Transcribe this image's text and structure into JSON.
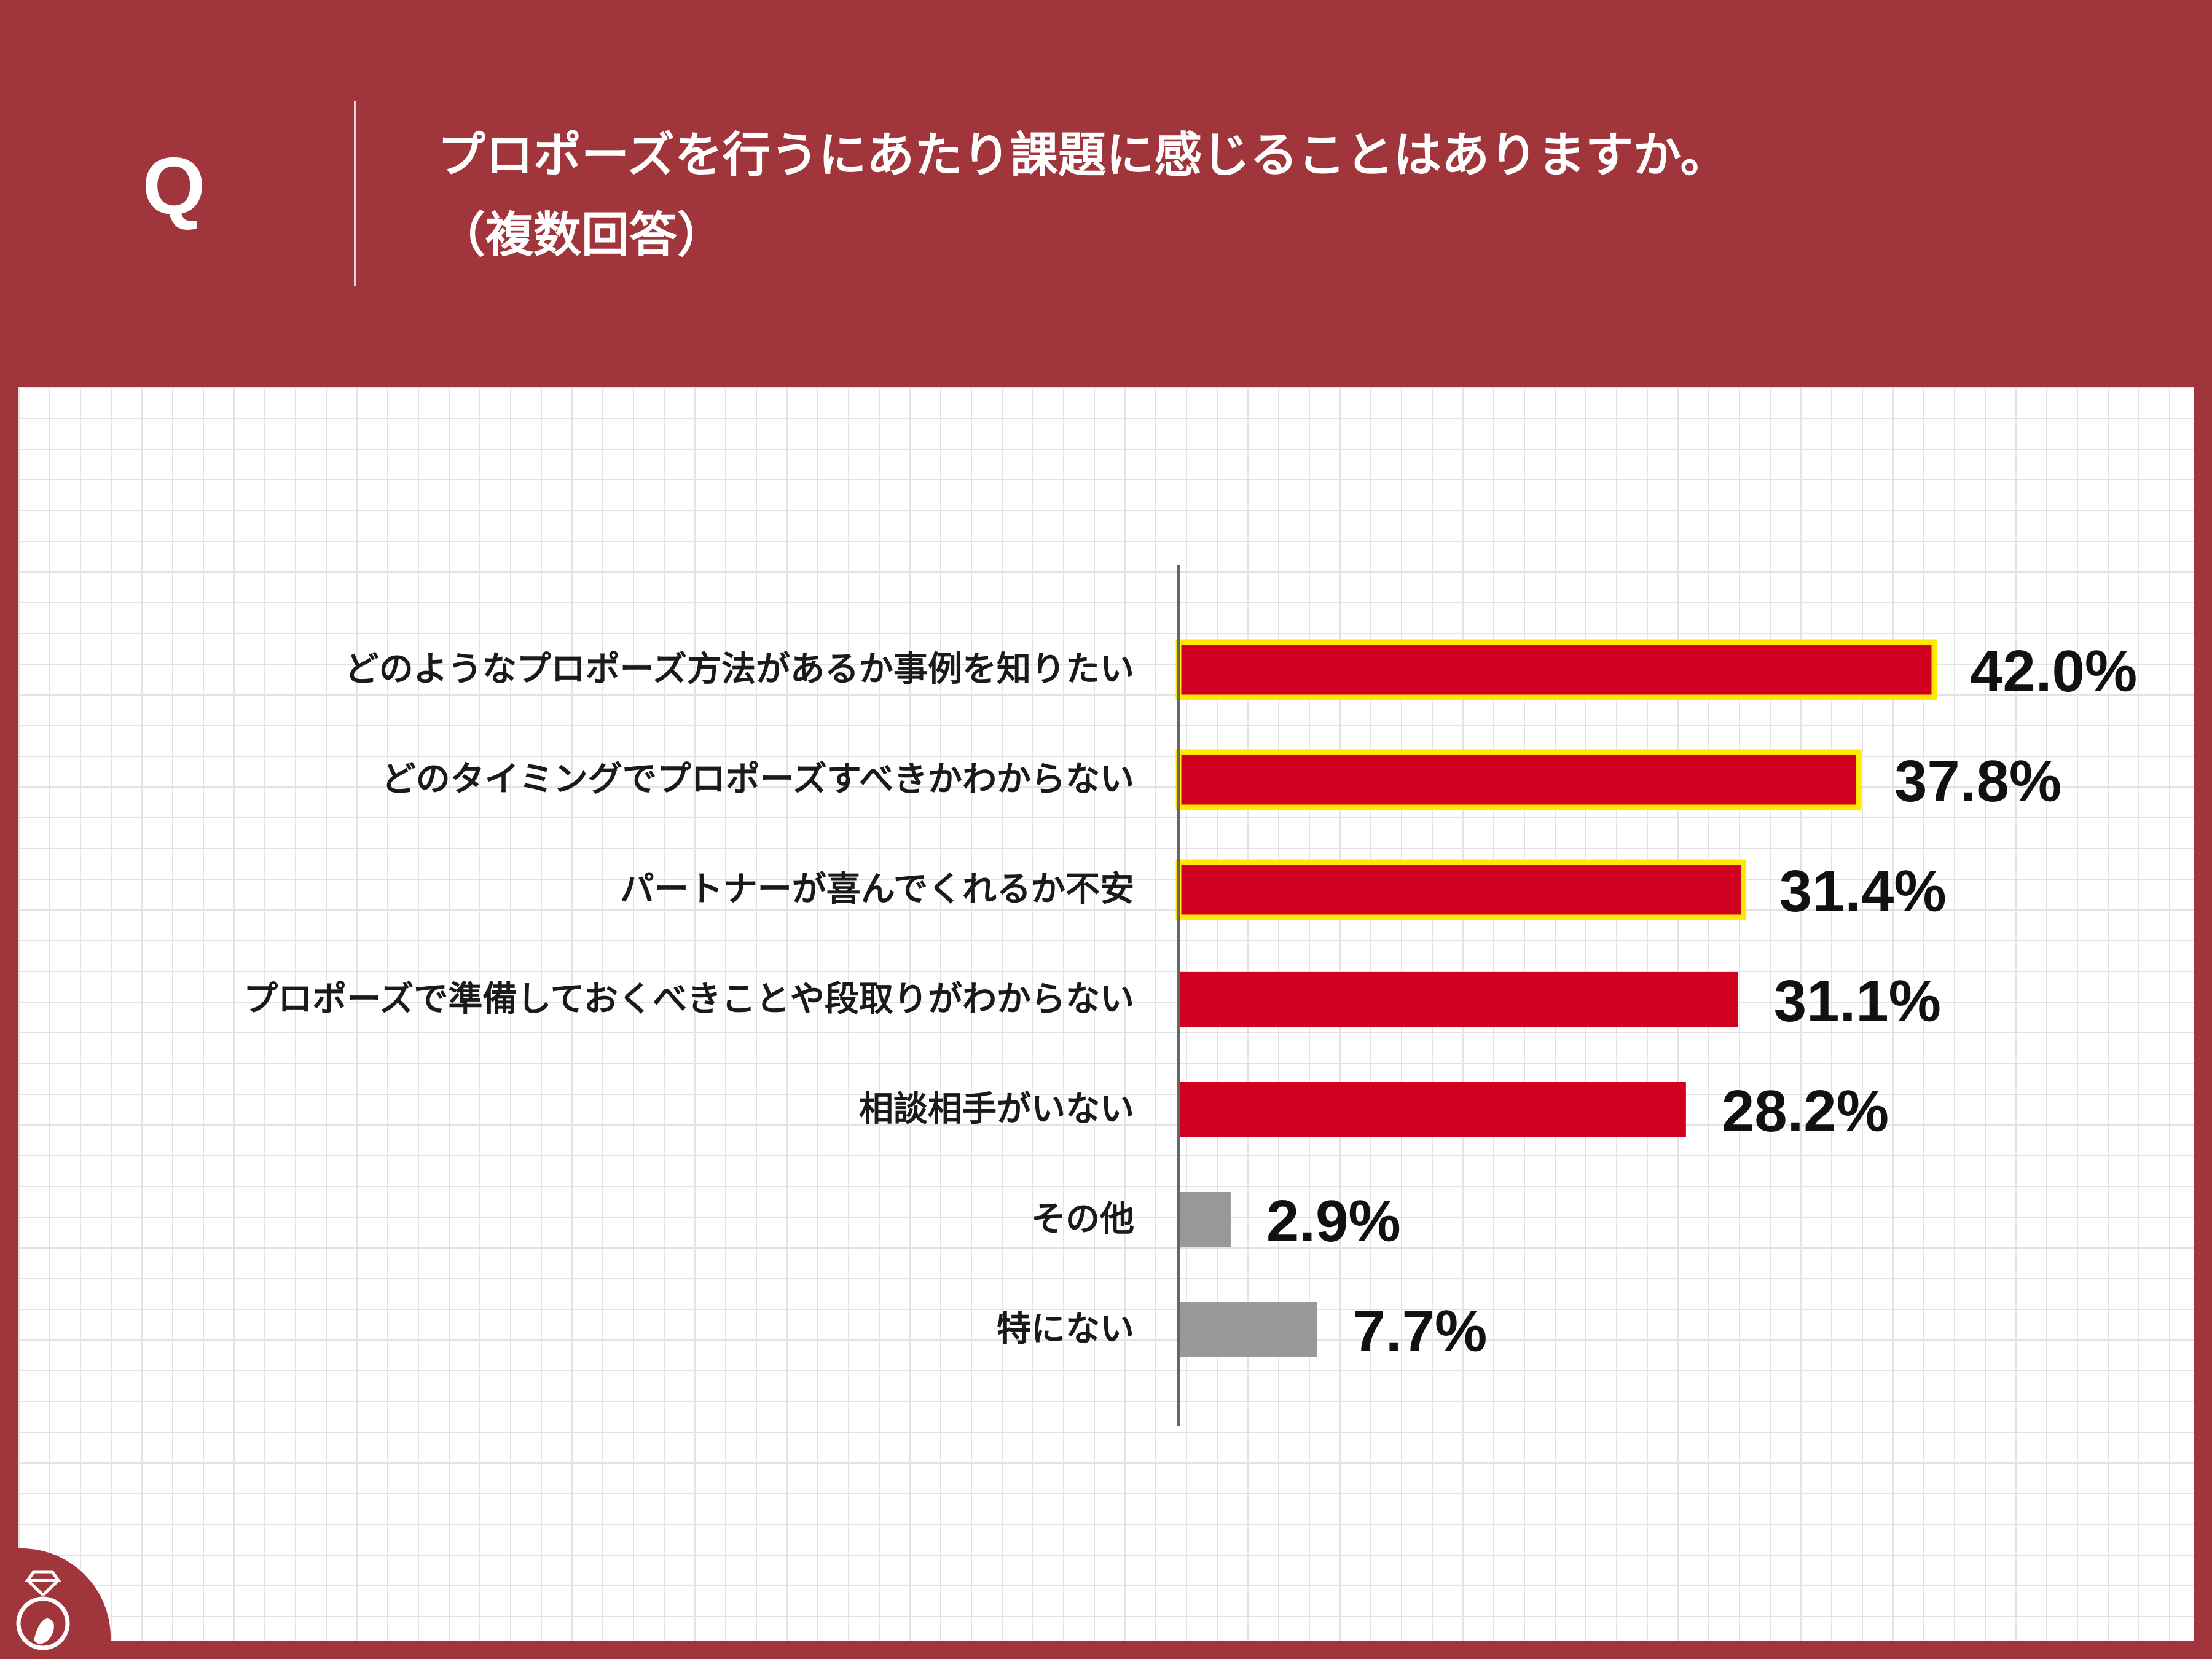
{
  "header": {
    "q_mark": "Q",
    "question_line1": "プロポーズを行うにあたり課題に感じることはありますか。",
    "question_line2": "（複数回答）"
  },
  "colors": {
    "background": "#a0363b",
    "bar_primary": "#d10020",
    "bar_highlight_border": "#ffe900",
    "bar_other": "#999999",
    "axis": "#666666"
  },
  "chart_data": {
    "type": "bar",
    "orientation": "horizontal",
    "title": "プロポーズを行うにあたり課題に感じることはありますか。（複数回答）",
    "categories": [
      "どのようなプロポーズ方法があるか事例を知りたい",
      "どのタイミングでプロポーズすべきかわからない",
      "パートナーが喜んでくれるか不安",
      "プロポーズで準備しておくべきことや段取りがわからない",
      "相談相手がいない",
      "その他",
      "特にない"
    ],
    "values": [
      42.0,
      37.8,
      31.4,
      31.1,
      28.2,
      2.9,
      7.7
    ],
    "value_labels": [
      "42.0%",
      "37.8%",
      "31.4%",
      "31.1%",
      "28.2%",
      "2.9%",
      "7.7%"
    ],
    "highlighted": [
      true,
      true,
      true,
      false,
      false,
      false,
      false
    ],
    "bar_color_group": [
      "primary",
      "primary",
      "primary",
      "primary",
      "primary",
      "other",
      "other"
    ],
    "unit": "%",
    "xlim": [
      0,
      42.0
    ],
    "grid": true,
    "legend": "none"
  },
  "logo": {
    "icon": "ring-logo-icon"
  }
}
